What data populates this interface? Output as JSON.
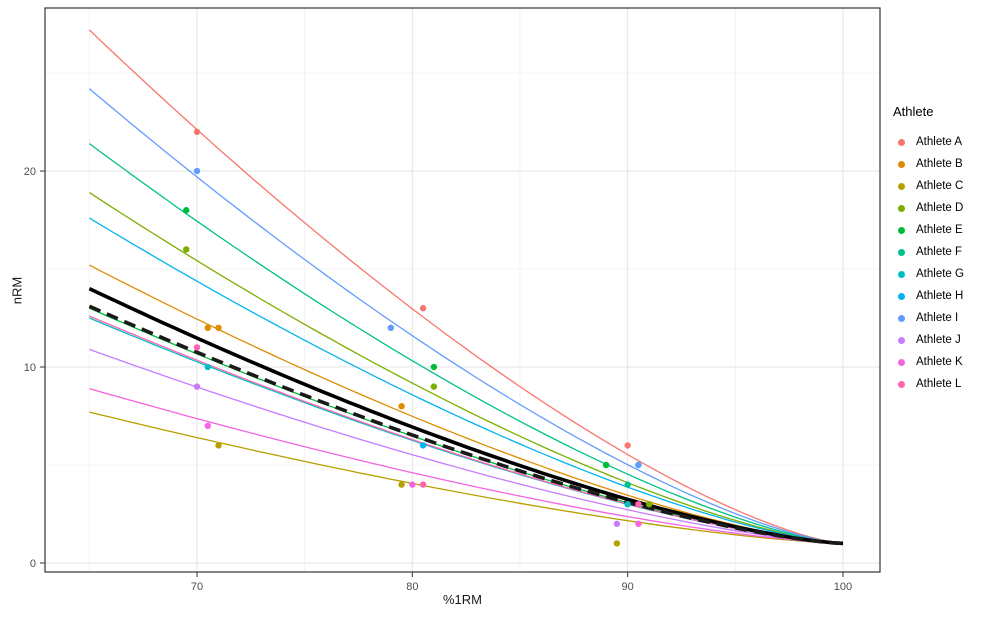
{
  "chart_data": {
    "type": "scatter",
    "title": "",
    "xlabel": "%1RM",
    "ylabel": "nRM",
    "xlim": [
      62.94,
      101.72
    ],
    "ylim": [
      -0.46,
      28.32
    ],
    "xticks": [
      70,
      80,
      90,
      100
    ],
    "yticks": [
      0,
      10,
      20
    ],
    "xticks_minor": [
      65,
      75,
      85,
      95
    ],
    "yticks_minor": [
      5,
      15,
      25
    ],
    "grid": true,
    "legend_title": "Athlete",
    "legend_position": "right",
    "model": "nRM = 1 + c * (100 - pct1RM)^1.4 ; every curve converges to nRM = 1 at 100 %1RM; c derived from nrm_at_65",
    "curve_exponent": 1.4,
    "converge_point": [
      100,
      1
    ],
    "series": [
      {
        "name": "Athlete A",
        "color": "#F8766D",
        "nrm_at_65": 27.2,
        "points": [
          [
            70,
            22
          ],
          [
            80.5,
            13
          ],
          [
            90,
            6
          ]
        ]
      },
      {
        "name": "Athlete B",
        "color": "#DE8C00",
        "nrm_at_65": 15.2,
        "points": [
          [
            70.5,
            12
          ],
          [
            71,
            12
          ],
          [
            79.5,
            8
          ]
        ]
      },
      {
        "name": "Athlete C",
        "color": "#B79F00",
        "nrm_at_65": 7.7,
        "points": [
          [
            71,
            6
          ],
          [
            79.5,
            4
          ],
          [
            89.5,
            1
          ]
        ]
      },
      {
        "name": "Athlete D",
        "color": "#7CAE00",
        "nrm_at_65": 18.9,
        "points": [
          [
            69.5,
            16
          ],
          [
            81,
            9
          ],
          [
            91,
            3
          ]
        ]
      },
      {
        "name": "Athlete E",
        "color": "#00BA38",
        "nrm_at_65": 13.0,
        "points": [
          [
            69.5,
            18
          ],
          [
            81,
            10
          ],
          [
            89,
            5
          ]
        ]
      },
      {
        "name": "Athlete F",
        "color": "#00C08B",
        "nrm_at_65": 21.4,
        "points": [
          [
            90,
            4
          ]
        ]
      },
      {
        "name": "Athlete G",
        "color": "#00BFC4",
        "nrm_at_65": 12.5,
        "points": [
          [
            70.5,
            10
          ],
          [
            90,
            3
          ]
        ]
      },
      {
        "name": "Athlete H",
        "color": "#00B4F0",
        "nrm_at_65": 17.6,
        "points": [
          [
            80.5,
            6
          ],
          [
            90.5,
            5
          ]
        ]
      },
      {
        "name": "Athlete I",
        "color": "#619CFF",
        "nrm_at_65": 24.2,
        "points": [
          [
            70,
            20
          ],
          [
            79,
            12
          ],
          [
            90.5,
            5
          ]
        ]
      },
      {
        "name": "Athlete J",
        "color": "#C77CFF",
        "nrm_at_65": 10.9,
        "points": [
          [
            70,
            9
          ],
          [
            89.5,
            2
          ]
        ]
      },
      {
        "name": "Athlete K",
        "color": "#F564E3",
        "nrm_at_65": 8.9,
        "points": [
          [
            70.5,
            7
          ],
          [
            80,
            4
          ],
          [
            90.5,
            2
          ]
        ]
      },
      {
        "name": "Athlete L",
        "color": "#FF64B0",
        "nrm_at_65": 12.6,
        "points": [
          [
            70,
            11
          ],
          [
            80.5,
            4
          ],
          [
            90.5,
            3
          ]
        ]
      }
    ],
    "reference_curves": [
      {
        "name": "group-curve-solid",
        "style": "solid",
        "color": "#000000",
        "width": 3.6,
        "nrm_at_65": 14.0
      },
      {
        "name": "group-curve-dashed",
        "style": "dashed",
        "color": "#1a1a1a",
        "width": 3.6,
        "nrm_at_65": 13.1
      }
    ],
    "style": {
      "panel_border": "#343434",
      "grid_major": "#e3e3e3",
      "grid_minor": "#f0f0f0",
      "tick_color": "#333333",
      "tick_label_color": "#4d4d4d",
      "point_radius": 3.2,
      "curve_width": 1.3
    }
  }
}
